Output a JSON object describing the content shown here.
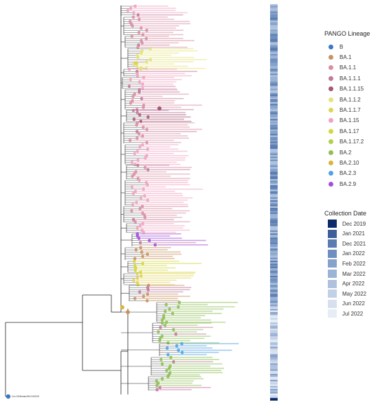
{
  "root_label": "Cov-19/Wuhan/WH-04/2019",
  "lineage_legend": {
    "title": "PANGO Lineage",
    "items": [
      {
        "label": "B",
        "color": "#3a78c0"
      },
      {
        "label": "BA.1",
        "color": "#c9915e"
      },
      {
        "label": "BA.1.1",
        "color": "#d98fa3"
      },
      {
        "label": "BA.1.1.1",
        "color": "#c2799c"
      },
      {
        "label": "BA.1.1.15",
        "color": "#a85672"
      },
      {
        "label": "BA.1.1.2",
        "color": "#e6e27a"
      },
      {
        "label": "BA.1.1.7",
        "color": "#e0d455"
      },
      {
        "label": "BA.1.15",
        "color": "#f0a3c0"
      },
      {
        "label": "BA.1.17",
        "color": "#d3d83c"
      },
      {
        "label": "BA.1.17.2",
        "color": "#b3cd4e"
      },
      {
        "label": "BA.2",
        "color": "#8fbf55"
      },
      {
        "label": "BA.2.10",
        "color": "#d8b63d"
      },
      {
        "label": "BA.2.3",
        "color": "#4fa3e0"
      },
      {
        "label": "BA.2.9",
        "color": "#a34fd8"
      }
    ]
  },
  "date_legend": {
    "title": "Collection Date",
    "items": [
      {
        "label": "Dec 2019",
        "color": "#0b2b6b"
      },
      {
        "label": "Jan 2021",
        "color": "#3d5f9a"
      },
      {
        "label": "Dec 2021",
        "color": "#5a7cb0"
      },
      {
        "label": "Jan 2022",
        "color": "#6f8fbe"
      },
      {
        "label": "Feb 2022",
        "color": "#86a2ca"
      },
      {
        "label": "Mar 2022",
        "color": "#9bb3d4"
      },
      {
        "label": "Apr 2022",
        "color": "#afc2dd"
      },
      {
        "label": "May 2022",
        "color": "#c3d1e6"
      },
      {
        "label": "Jun 2022",
        "color": "#d6e0ee"
      },
      {
        "label": "Jul 2022",
        "color": "#e6edf5"
      }
    ]
  }
}
